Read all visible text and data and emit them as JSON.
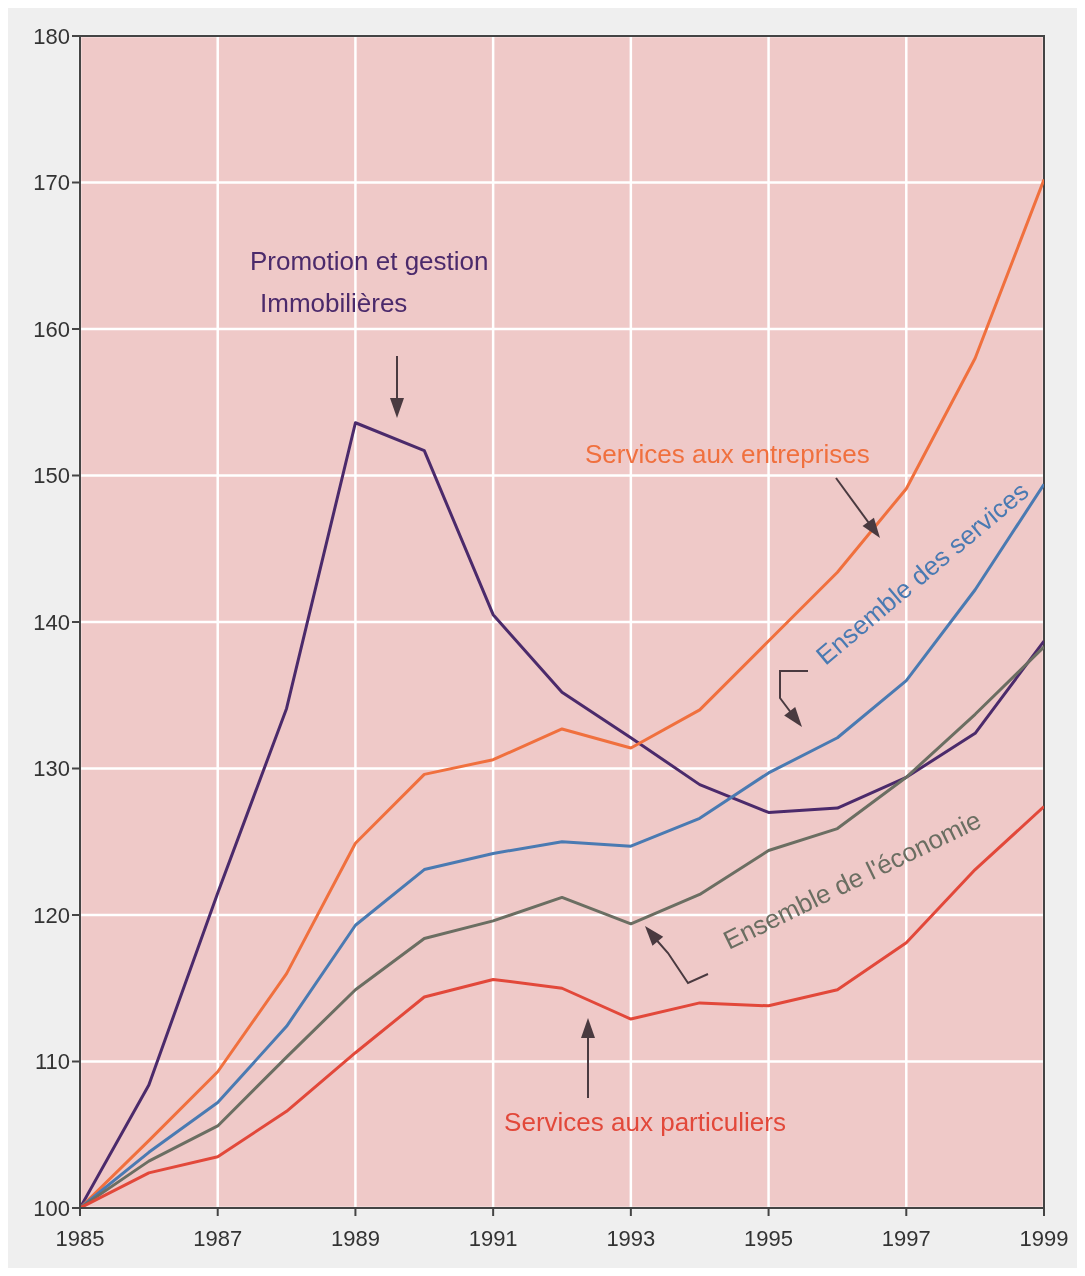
{
  "chart_data": {
    "type": "line",
    "x": [
      1985,
      1986,
      1987,
      1988,
      1989,
      1990,
      1991,
      1992,
      1993,
      1994,
      1995,
      1996,
      1997,
      1998,
      1999
    ],
    "series": [
      {
        "name": "Promotion et gestion Immobilières",
        "color": "#4b2a6b",
        "values": [
          100,
          108.4,
          121.5,
          134.1,
          153.6,
          151.7,
          140.5,
          135.2,
          132.1,
          128.9,
          127.0,
          127.3,
          129.4,
          132.4,
          138.7
        ]
      },
      {
        "name": "Services aux entreprises",
        "color": "#f0703e",
        "values": [
          100,
          104.6,
          109.3,
          116.0,
          124.9,
          129.6,
          130.6,
          132.7,
          131.4,
          134.0,
          138.7,
          143.4,
          149.1,
          158.0,
          170.2
        ]
      },
      {
        "name": "Ensemble des services",
        "color": "#4a7ab2",
        "values": [
          100,
          103.8,
          107.2,
          112.4,
          119.3,
          123.1,
          124.2,
          125.0,
          124.7,
          126.6,
          129.7,
          132.1,
          136.0,
          142.2,
          149.4
        ]
      },
      {
        "name": "Ensemble de l'économie",
        "color": "#6b6e62",
        "values": [
          100,
          103.2,
          105.6,
          110.3,
          114.9,
          118.4,
          119.6,
          121.2,
          119.4,
          121.4,
          124.4,
          125.9,
          129.4,
          133.7,
          138.3
        ]
      },
      {
        "name": "Services aux particuliers",
        "color": "#e2483a",
        "values": [
          100,
          102.4,
          103.5,
          106.6,
          110.6,
          114.4,
          115.6,
          115.0,
          112.9,
          114.0,
          113.8,
          114.9,
          118.1,
          123.1,
          127.4
        ]
      }
    ],
    "xlim": [
      1985,
      1999
    ],
    "xticks": [
      1985,
      1987,
      1989,
      1991,
      1993,
      1995,
      1997,
      1999
    ],
    "ylim": [
      100,
      180
    ],
    "yticks": [
      100,
      110,
      120,
      130,
      140,
      150,
      160,
      170,
      180
    ],
    "grid": true,
    "legend": false,
    "marker": "none",
    "line_style": "solid"
  }
}
